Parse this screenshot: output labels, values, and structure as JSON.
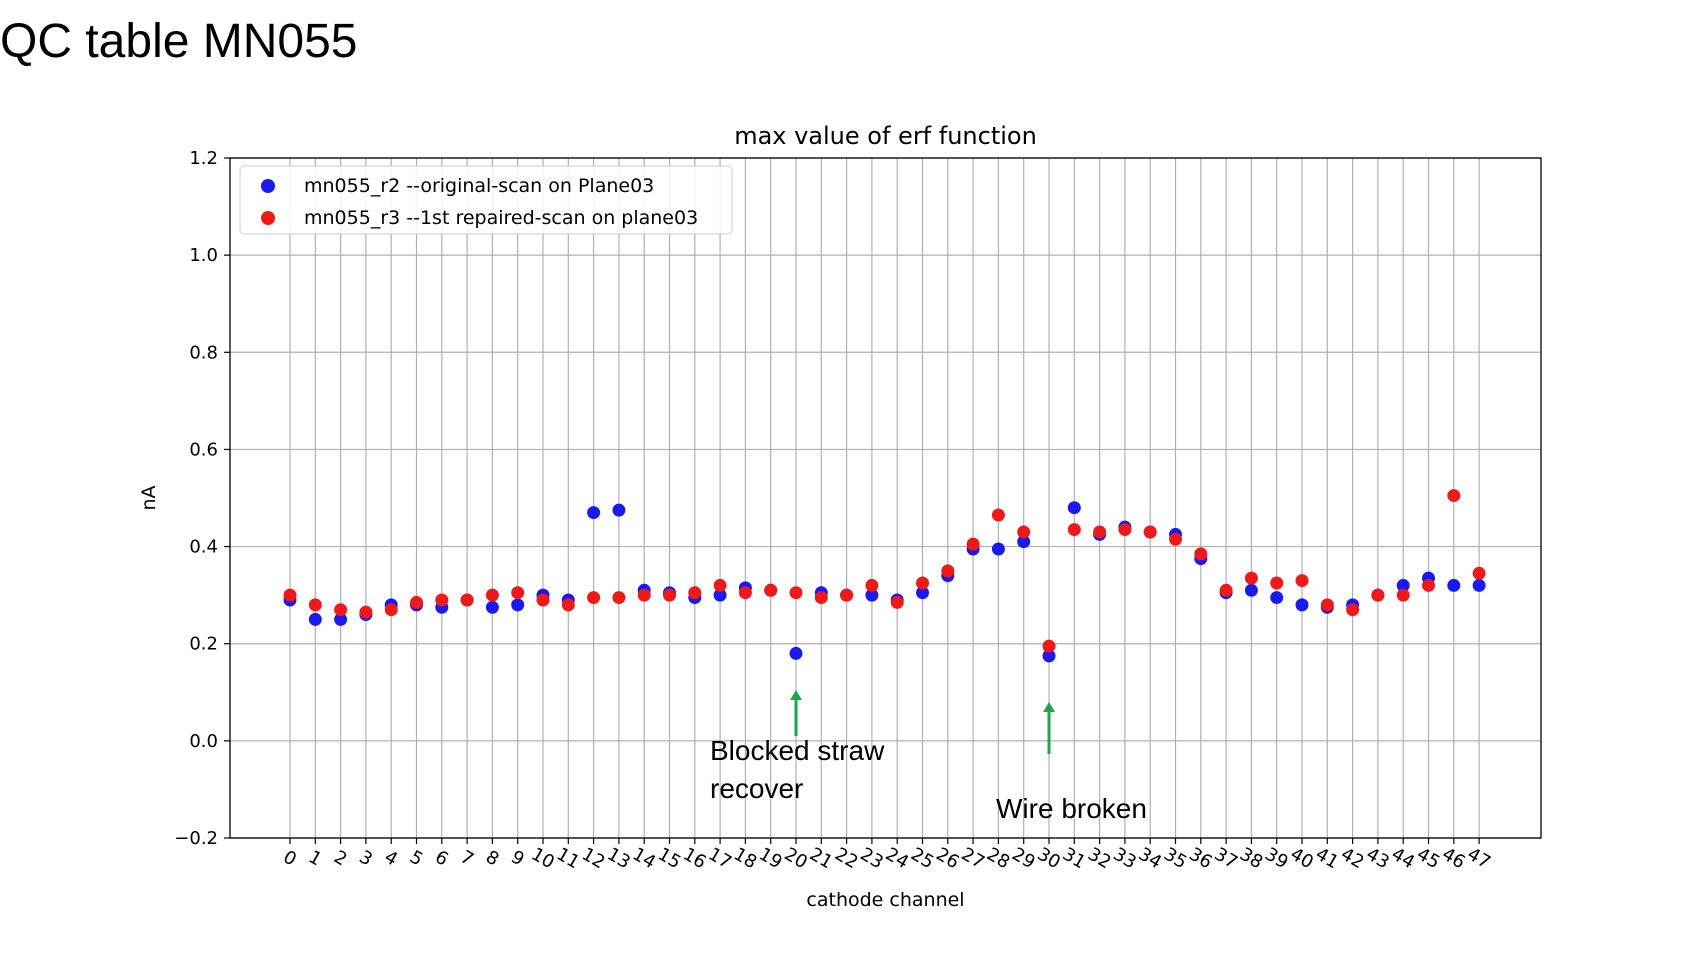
{
  "slide": {
    "title": "QC table MN055"
  },
  "chart_data": {
    "type": "scatter",
    "title": "max value of erf function",
    "xlabel": "cathode channel",
    "ylabel": "nA",
    "x": [
      0,
      1,
      2,
      3,
      4,
      5,
      6,
      7,
      8,
      9,
      10,
      11,
      12,
      13,
      14,
      15,
      16,
      17,
      18,
      19,
      20,
      21,
      22,
      23,
      24,
      25,
      26,
      27,
      28,
      29,
      30,
      31,
      32,
      33,
      34,
      35,
      36,
      37,
      38,
      39,
      40,
      41,
      42,
      43,
      44,
      45,
      46,
      47
    ],
    "xticklabels": [
      "0",
      "1",
      "2",
      "3",
      "4",
      "5",
      "6",
      "7",
      "8",
      "9",
      "10",
      "11",
      "12",
      "13",
      "14",
      "15",
      "16",
      "17",
      "18",
      "19",
      "20",
      "21",
      "22",
      "23",
      "24",
      "25",
      "26",
      "27",
      "28",
      "29",
      "30",
      "31",
      "32",
      "33",
      "34",
      "35",
      "36",
      "37",
      "38",
      "39",
      "40",
      "41",
      "42",
      "43",
      "44",
      "45",
      "46",
      "47"
    ],
    "ylim": [
      -0.2,
      1.2
    ],
    "yticks": [
      -0.2,
      0.0,
      0.2,
      0.4,
      0.6,
      0.8,
      1.0,
      1.2
    ],
    "yticklabels": [
      "−0.2",
      "0.0",
      "0.2",
      "0.4",
      "0.6",
      "0.8",
      "1.0",
      "1.2"
    ],
    "grid": true,
    "legend_position": "top-left",
    "series": [
      {
        "name": "mn055_r2 --original-scan on Plane03",
        "color": "#1a1aee",
        "values": [
          0.29,
          0.25,
          0.25,
          0.26,
          0.28,
          0.28,
          0.275,
          0.29,
          0.275,
          0.28,
          0.3,
          0.29,
          0.47,
          0.475,
          0.31,
          0.305,
          0.295,
          0.3,
          0.315,
          0.31,
          0.18,
          0.305,
          0.3,
          0.3,
          0.29,
          0.305,
          0.34,
          0.395,
          0.395,
          0.41,
          0.175,
          0.48,
          0.425,
          0.44,
          0.43,
          0.425,
          0.375,
          0.305,
          0.31,
          0.295,
          0.28,
          0.275,
          0.28,
          0.3,
          0.32,
          0.335,
          0.32,
          0.32
        ]
      },
      {
        "name": "mn055_r3 --1st repaired-scan on plane03",
        "color": "#ee1a1a",
        "values": [
          0.3,
          0.28,
          0.27,
          0.265,
          0.27,
          0.285,
          0.29,
          0.29,
          0.3,
          0.305,
          0.29,
          0.28,
          0.295,
          0.295,
          0.3,
          0.3,
          0.305,
          0.32,
          0.305,
          0.31,
          0.305,
          0.295,
          0.3,
          0.32,
          0.285,
          0.325,
          0.35,
          0.405,
          0.465,
          0.43,
          0.195,
          0.435,
          0.43,
          0.435,
          0.43,
          0.415,
          0.385,
          0.31,
          0.335,
          0.325,
          0.33,
          0.28,
          0.27,
          0.3,
          0.3,
          0.32,
          0.505,
          0.345
        ]
      }
    ]
  },
  "annotations": {
    "blocked_line1": "Blocked straw",
    "blocked_line2": "recover",
    "blocked_channel": 20,
    "wire_broken": "Wire broken",
    "wire_channel": 30,
    "arrow_color": "#1aa84a"
  }
}
